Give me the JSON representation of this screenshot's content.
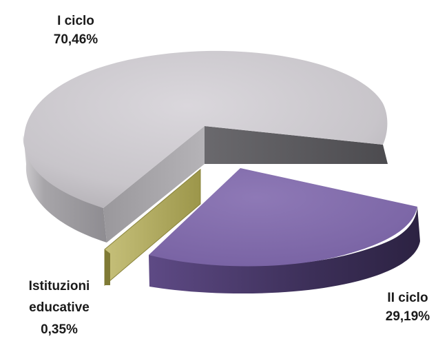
{
  "chart_data": {
    "type": "pie",
    "style": "3d-exploded",
    "slices": [
      {
        "category_lines": [
          "I ciclo"
        ],
        "value_label": "70,46%",
        "value": 70.46,
        "color": "#c9c6cb"
      },
      {
        "category_lines": [
          "II ciclo"
        ],
        "value_label": "29,19%",
        "value": 29.19,
        "color": "#8a74b0"
      },
      {
        "category_lines": [
          "Istituzioni",
          "educative"
        ],
        "value_label": "0,35%",
        "value": 0.35,
        "color": "#b6b05e"
      }
    ]
  }
}
